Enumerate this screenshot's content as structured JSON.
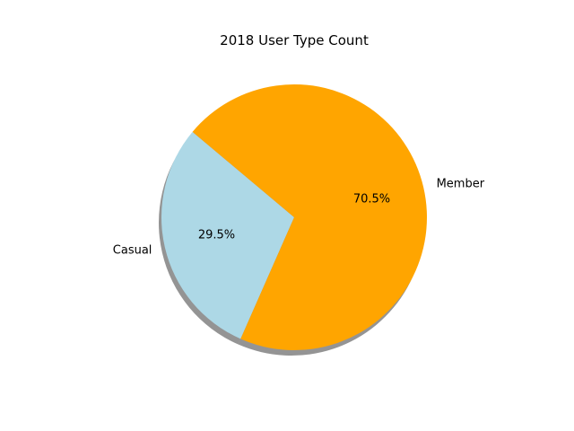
{
  "chart_data": {
    "type": "pie",
    "title": "2018 User Type Count",
    "slices": [
      {
        "label": "Casual",
        "value": 29.5,
        "value_label": "29.5%",
        "color": "#add8e6"
      },
      {
        "label": "Member",
        "value": 70.5,
        "value_label": "70.5%",
        "color": "#ffa500"
      }
    ],
    "shadow": true,
    "start_angle_deg": 140
  }
}
